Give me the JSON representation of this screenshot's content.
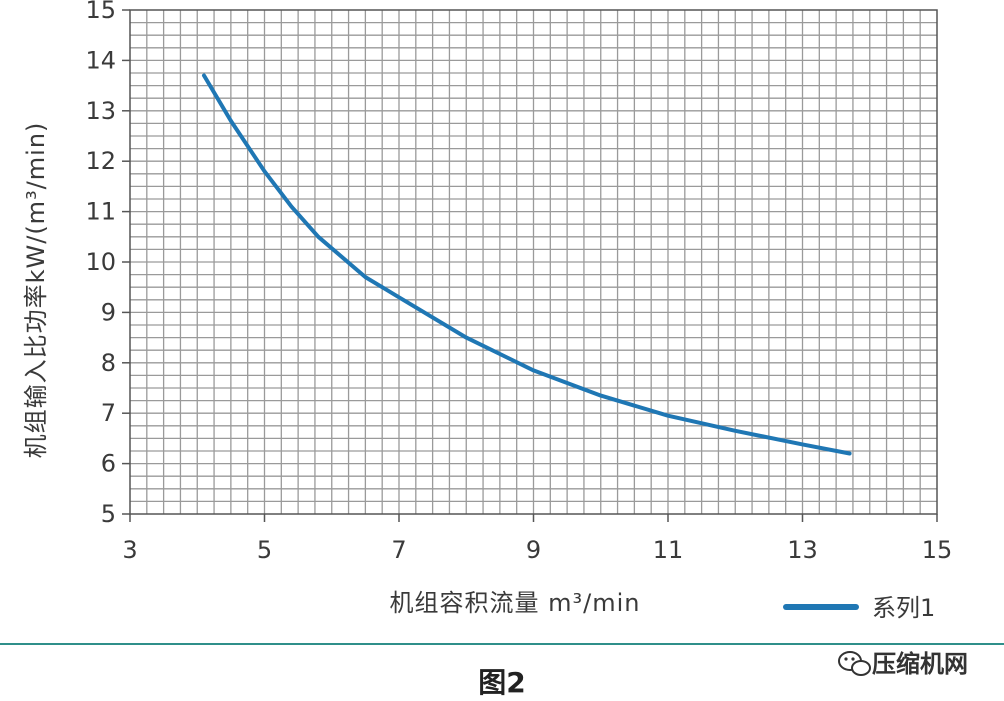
{
  "chart_data": {
    "type": "line",
    "title": "",
    "xlabel": "机组容积流量  m³/min",
    "ylabel": "机组输入比功率kW/(m³/min)",
    "xlim": [
      3,
      15
    ],
    "ylim": [
      5,
      15
    ],
    "x_ticks": [
      "3",
      "5",
      "7",
      "9",
      "11",
      "13",
      "15"
    ],
    "y_ticks": [
      "5",
      "6",
      "7",
      "8",
      "9",
      "10",
      "11",
      "12",
      "13",
      "14",
      "15"
    ],
    "grid": true,
    "legend_position": "bottom-right",
    "series": [
      {
        "name": "系列1",
        "color": "#1f77b4",
        "x": [
          4.1,
          4.5,
          5.0,
          5.4,
          5.8,
          6.5,
          7.0,
          8.0,
          9.0,
          10.0,
          11.0,
          12.0,
          13.0,
          13.7
        ],
        "y": [
          13.7,
          12.8,
          11.8,
          11.1,
          10.5,
          9.7,
          9.3,
          8.5,
          7.85,
          7.35,
          6.95,
          6.65,
          6.38,
          6.2
        ]
      }
    ]
  },
  "caption": "图2",
  "watermark": {
    "icon": "wechat-icon",
    "text": "压缩机网"
  },
  "colors": {
    "line": "#1f77b4",
    "grid": "#9a9a9a",
    "divider": "#2f8f8a"
  }
}
